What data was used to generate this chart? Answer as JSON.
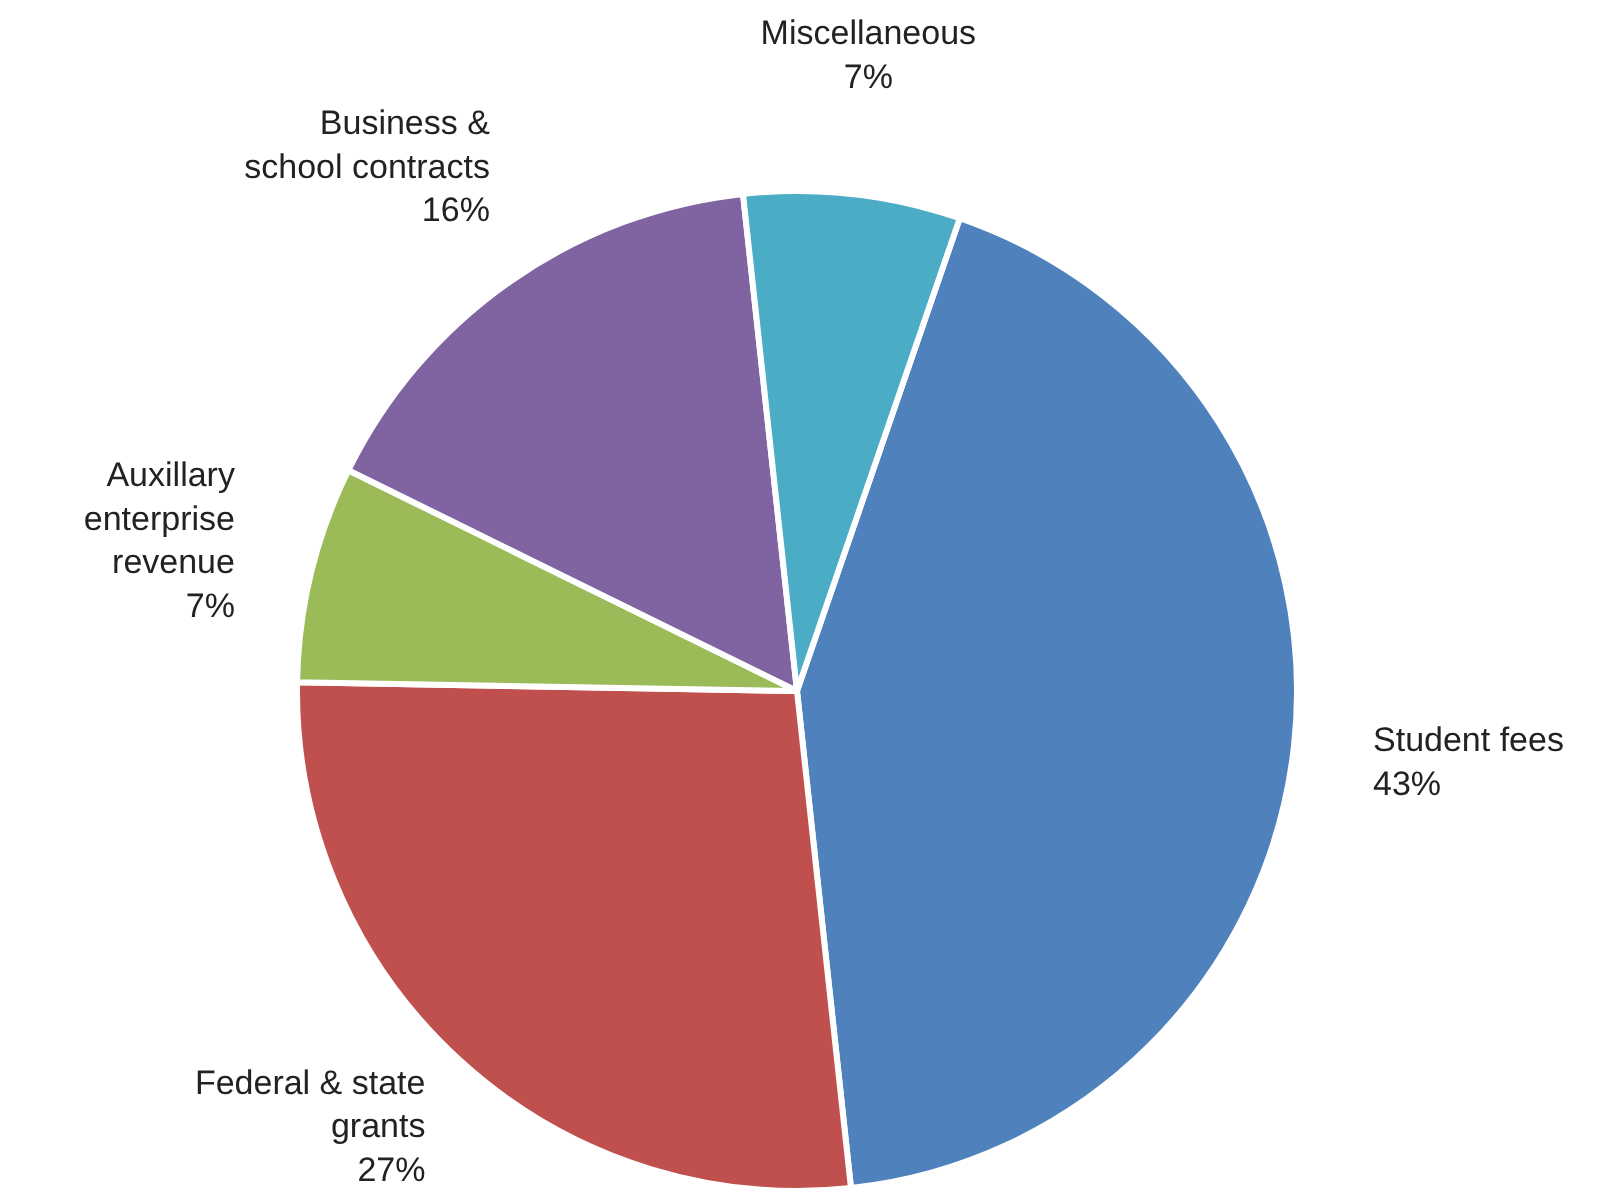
{
  "chart_data": {
    "type": "pie",
    "categories": [
      "Student fees",
      "Federal & state\ngrants",
      "Auxillary\nenterprise\nrevenue",
      "Business &\nschool contracts",
      "Miscellaneous"
    ],
    "values": [
      43,
      27,
      7,
      16,
      7
    ],
    "colors": [
      "#4f81bd",
      "#c0504d",
      "#9bbb59",
      "#8064a2",
      "#4bacc6"
    ],
    "value_labels": [
      "43%",
      "27%",
      "7%",
      "16%",
      "7%"
    ]
  }
}
